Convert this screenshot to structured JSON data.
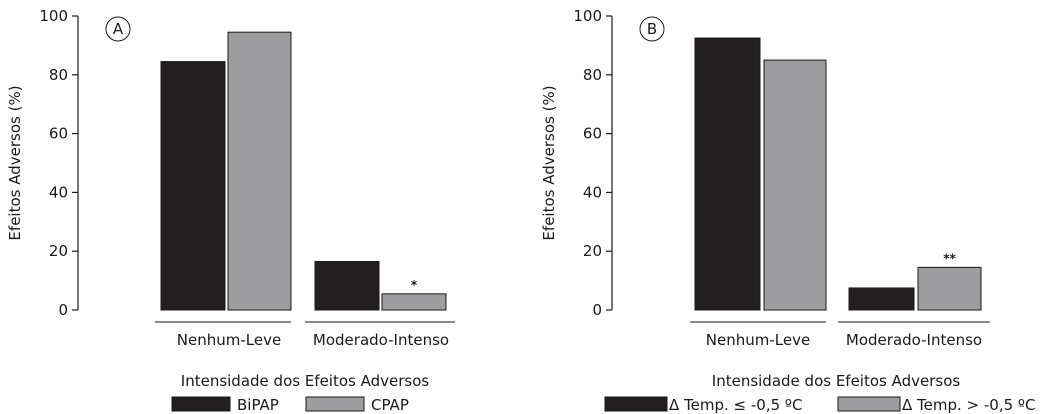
{
  "chart_data": [
    {
      "type": "bar",
      "panel_label": "A",
      "categories": [
        "Nenhum-Leve",
        "Moderado-Intenso"
      ],
      "series": [
        {
          "name": "BiPAP",
          "values": [
            84.5,
            16.5
          ]
        },
        {
          "name": "CPAP",
          "values": [
            94.5,
            5.5
          ]
        }
      ],
      "annotations": [
        {
          "category_index": 1,
          "series_index": 1,
          "text": "*"
        }
      ],
      "xlabel": "Intensidade dos Efeitos Adversos",
      "ylabel": "Efeitos Adversos (%)",
      "ylim": [
        0,
        100
      ],
      "yticks": [
        0,
        20,
        40,
        60,
        80,
        100
      ],
      "legend_position": "bottom",
      "grid": false
    },
    {
      "type": "bar",
      "panel_label": "B",
      "categories": [
        "Nenhum-Leve",
        "Moderado-Intenso"
      ],
      "series": [
        {
          "name": "Δ Temp. ≤ -0,5 ºC",
          "values": [
            92.5,
            7.5
          ]
        },
        {
          "name": "Δ Temp. > -0,5 ºC",
          "values": [
            85,
            14.5
          ]
        }
      ],
      "annotations": [
        {
          "category_index": 1,
          "series_index": 1,
          "text": "**"
        }
      ],
      "xlabel": "Intensidade dos Efeitos Adversos",
      "ylabel": "Efeitos Adversos (%)",
      "ylim": [
        0,
        100
      ],
      "yticks": [
        0,
        20,
        40,
        60,
        80,
        100
      ],
      "legend_position": "bottom",
      "grid": false
    }
  ],
  "colors": {
    "series_1": "#231f20",
    "series_2": "#9d9d9f",
    "axis": "#1a1a1a"
  }
}
